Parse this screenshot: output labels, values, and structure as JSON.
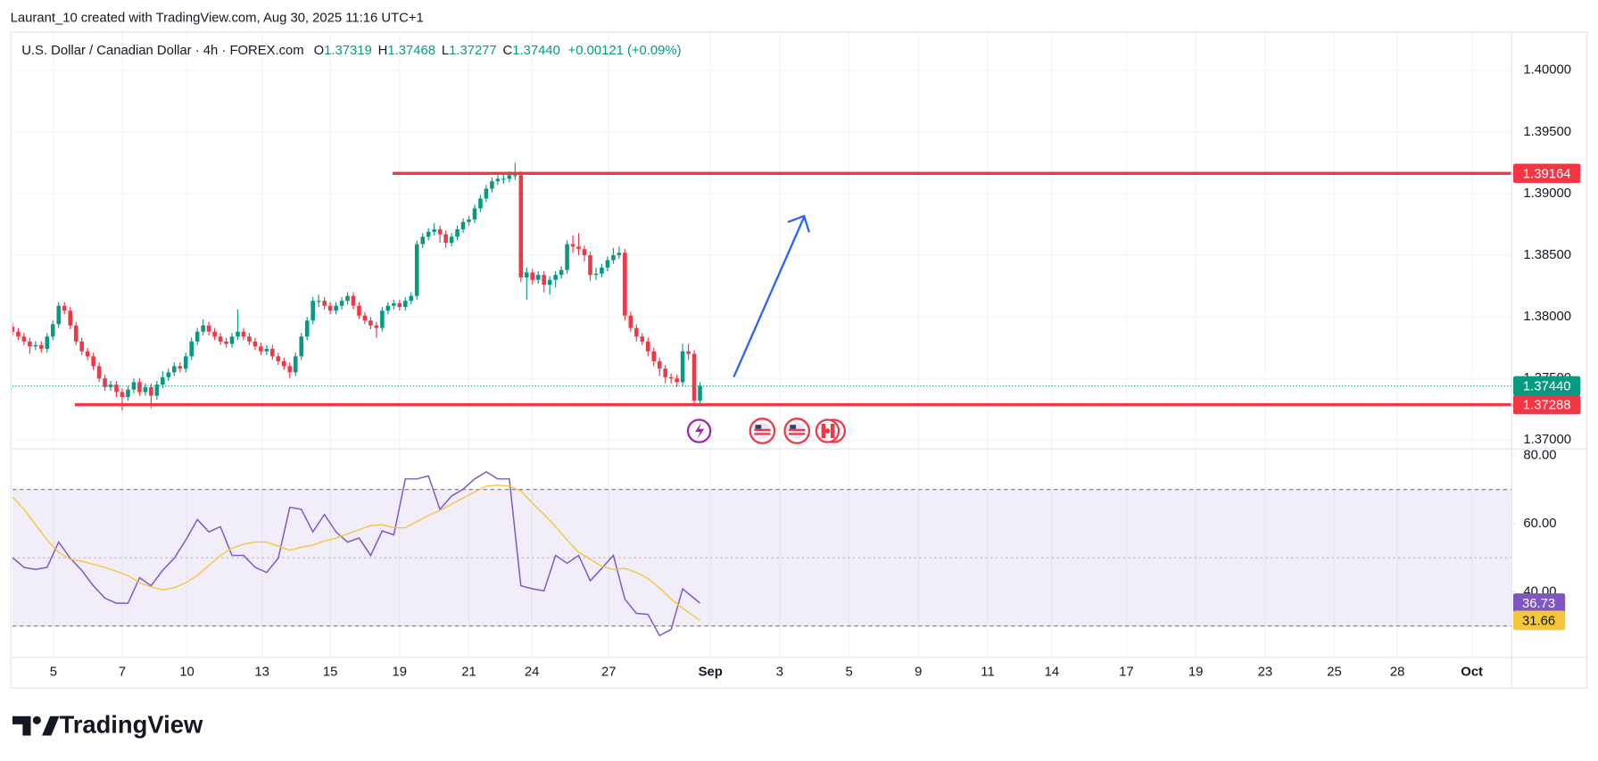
{
  "header": {
    "attribution": "Laurant_10 created with TradingView.com, Aug 30, 2025 11:16 UTC+1",
    "symbol": "U.S. Dollar / Canadian Dollar · 4h · FOREX.com",
    "ohlc": [
      {
        "key": "O",
        "value": "1.37319"
      },
      {
        "key": "H",
        "value": "1.37468"
      },
      {
        "key": "L",
        "value": "1.37277"
      },
      {
        "key": "C",
        "value": "1.37440"
      }
    ],
    "change": "+0.00121 (+0.09%)"
  },
  "chart_data": [
    {
      "type": "candlestick",
      "xlim": [
        0,
        259.4
      ],
      "xticks": [
        {
          "value": 7.1,
          "label": "5"
        },
        {
          "value": 19.0,
          "label": "7"
        },
        {
          "value": 30.2,
          "label": "10"
        },
        {
          "value": 43.2,
          "label": "13"
        },
        {
          "value": 55.0,
          "label": "15"
        },
        {
          "value": 67.0,
          "label": "19"
        },
        {
          "value": 79.0,
          "label": "21"
        },
        {
          "value": 89.9,
          "label": "24"
        },
        {
          "value": 103.2,
          "label": "27"
        },
        {
          "value": 120.8,
          "label": "Sep"
        },
        {
          "value": 132.8,
          "label": "3"
        },
        {
          "value": 144.8,
          "label": "5"
        },
        {
          "value": 156.8,
          "label": "9"
        },
        {
          "value": 168.8,
          "label": "11"
        },
        {
          "value": 179.9,
          "label": "14"
        },
        {
          "value": 192.8,
          "label": "17"
        },
        {
          "value": 204.8,
          "label": "19"
        },
        {
          "value": 216.8,
          "label": "23"
        },
        {
          "value": 228.8,
          "label": "25"
        },
        {
          "value": 239.7,
          "label": "28"
        },
        {
          "value": 252.6,
          "label": "Oct"
        }
      ],
      "ylim": [
        1.36934,
        1.40306
      ],
      "yticks": [
        {
          "value": 1.37,
          "label": "1.37000"
        },
        {
          "value": 1.375,
          "label": "1.37500"
        },
        {
          "value": 1.38,
          "label": "1.38000"
        },
        {
          "value": 1.385,
          "label": "1.38500"
        },
        {
          "value": 1.39,
          "label": "1.39000"
        },
        {
          "value": 1.395,
          "label": "1.39500"
        },
        {
          "value": 1.4,
          "label": "1.40000"
        }
      ],
      "grid": true,
      "up_color": "#089981",
      "down_color": "#f23645",
      "open": [
        1.3792,
        1.3788,
        1.3784,
        1.378,
        1.3776,
        1.3777,
        1.3774,
        1.3784,
        1.3794,
        1.3809,
        1.3805,
        1.3793,
        1.378,
        1.3772,
        1.3768,
        1.376,
        1.375,
        1.3743,
        1.3745,
        1.3739,
        1.3735,
        1.3741,
        1.3747,
        1.3739,
        1.3743,
        1.3736,
        1.3745,
        1.3751,
        1.3755,
        1.376,
        1.3758,
        1.3768,
        1.378,
        1.3788,
        1.3793,
        1.3788,
        1.3784,
        1.378,
        1.3778,
        1.3784,
        1.3788,
        1.3784,
        1.378,
        1.3776,
        1.3772,
        1.3774,
        1.3768,
        1.3764,
        1.376,
        1.3755,
        1.3768,
        1.3784,
        1.3797,
        1.3813,
        1.3813,
        1.3809,
        1.3805,
        1.3809,
        1.3813,
        1.3817,
        1.3809,
        1.3801,
        1.3797,
        1.3793,
        1.3791,
        1.3805,
        1.3809,
        1.3811,
        1.3808,
        1.3813,
        1.3817,
        1.3859,
        1.3865,
        1.3869,
        1.3871,
        1.3867,
        1.386,
        1.3865,
        1.3871,
        1.3877,
        1.3879,
        1.3888,
        1.3896,
        1.3904,
        1.391,
        1.3912,
        1.3912,
        1.3915,
        1.3915,
        1.3832,
        1.3836,
        1.383,
        1.3834,
        1.3826,
        1.383,
        1.3834,
        1.3838,
        1.3859,
        1.3857,
        1.3855,
        1.385,
        1.3834,
        1.3835,
        1.384,
        1.3846,
        1.385,
        1.3852,
        1.3801,
        1.3791,
        1.3784,
        1.378,
        1.3772,
        1.3764,
        1.3758,
        1.3751,
        1.375,
        1.3747,
        1.3772,
        1.377,
        1.3732
      ],
      "high": [
        1.3795,
        1.3791,
        1.3787,
        1.3783,
        1.378,
        1.378,
        1.3787,
        1.3797,
        1.3812,
        1.3812,
        1.3808,
        1.3796,
        1.3783,
        1.3775,
        1.3771,
        1.3763,
        1.3753,
        1.3748,
        1.3748,
        1.3742,
        1.3744,
        1.375,
        1.375,
        1.3746,
        1.3746,
        1.3748,
        1.3756,
        1.3758,
        1.3763,
        1.3763,
        1.3771,
        1.3783,
        1.3791,
        1.3798,
        1.3796,
        1.3791,
        1.3787,
        1.3783,
        1.3787,
        1.3806,
        1.3791,
        1.3787,
        1.3783,
        1.3779,
        1.3777,
        1.3777,
        1.3771,
        1.3767,
        1.3763,
        1.3771,
        1.3787,
        1.38,
        1.3816,
        1.3818,
        1.3816,
        1.3812,
        1.3812,
        1.3816,
        1.382,
        1.382,
        1.3812,
        1.3804,
        1.38,
        1.3796,
        1.3808,
        1.3812,
        1.3814,
        1.3814,
        1.3816,
        1.382,
        1.3862,
        1.3868,
        1.3872,
        1.3876,
        1.3874,
        1.387,
        1.3868,
        1.3874,
        1.388,
        1.3882,
        1.3891,
        1.3899,
        1.3907,
        1.3913,
        1.3915,
        1.3916,
        1.3918,
        1.3925,
        1.3918,
        1.384,
        1.3839,
        1.3837,
        1.3837,
        1.3833,
        1.3837,
        1.3841,
        1.3862,
        1.3866,
        1.3868,
        1.3858,
        1.3853,
        1.384,
        1.3843,
        1.3849,
        1.3856,
        1.3857,
        1.3855,
        1.3804,
        1.3794,
        1.3787,
        1.3783,
        1.3775,
        1.3767,
        1.3761,
        1.3754,
        1.3753,
        1.3778,
        1.3778,
        1.3773,
        1.3747
      ],
      "low": [
        1.3785,
        1.3781,
        1.3777,
        1.377,
        1.3773,
        1.3771,
        1.3771,
        1.3781,
        1.3791,
        1.3802,
        1.379,
        1.3777,
        1.3769,
        1.3765,
        1.3757,
        1.3747,
        1.374,
        1.374,
        1.3735,
        1.3724,
        1.3732,
        1.3738,
        1.3736,
        1.3736,
        1.3726,
        1.3733,
        1.3742,
        1.3748,
        1.3752,
        1.3755,
        1.3755,
        1.3765,
        1.3777,
        1.3785,
        1.3785,
        1.3781,
        1.3777,
        1.3775,
        1.3775,
        1.3781,
        1.3781,
        1.3777,
        1.3773,
        1.3769,
        1.3769,
        1.3765,
        1.3761,
        1.3757,
        1.375,
        1.3752,
        1.3765,
        1.3781,
        1.3794,
        1.3808,
        1.3806,
        1.3802,
        1.3802,
        1.3806,
        1.381,
        1.3806,
        1.3798,
        1.3794,
        1.379,
        1.3783,
        1.3788,
        1.3802,
        1.3806,
        1.3805,
        1.3805,
        1.381,
        1.3814,
        1.3856,
        1.3862,
        1.3866,
        1.386,
        1.3856,
        1.3857,
        1.3862,
        1.3868,
        1.3874,
        1.3876,
        1.3885,
        1.3893,
        1.3901,
        1.3907,
        1.3908,
        1.3909,
        1.3911,
        1.3828,
        1.3814,
        1.3826,
        1.3827,
        1.382,
        1.3818,
        1.3824,
        1.3831,
        1.3835,
        1.3852,
        1.385,
        1.3845,
        1.3829,
        1.383,
        1.3832,
        1.3837,
        1.3843,
        1.3847,
        1.3797,
        1.3788,
        1.378,
        1.3777,
        1.3768,
        1.376,
        1.3752,
        1.3746,
        1.3746,
        1.3743,
        1.3744,
        1.3765,
        1.3728,
        1.3728
      ],
      "close": [
        1.3788,
        1.3784,
        1.378,
        1.3776,
        1.3777,
        1.3774,
        1.3784,
        1.3794,
        1.3809,
        1.3805,
        1.3793,
        1.378,
        1.3772,
        1.3768,
        1.376,
        1.375,
        1.3743,
        1.3745,
        1.3739,
        1.3735,
        1.3741,
        1.3747,
        1.3739,
        1.3743,
        1.3736,
        1.3745,
        1.3751,
        1.3755,
        1.376,
        1.3758,
        1.3768,
        1.378,
        1.3788,
        1.3793,
        1.3788,
        1.3784,
        1.378,
        1.3778,
        1.3784,
        1.3788,
        1.3784,
        1.378,
        1.3776,
        1.3772,
        1.3774,
        1.3768,
        1.3764,
        1.376,
        1.3755,
        1.3768,
        1.3784,
        1.3797,
        1.3813,
        1.3813,
        1.3809,
        1.3805,
        1.3809,
        1.3813,
        1.3817,
        1.3809,
        1.3801,
        1.3797,
        1.3793,
        1.3791,
        1.3805,
        1.3809,
        1.3811,
        1.3808,
        1.3813,
        1.3817,
        1.3859,
        1.3865,
        1.3869,
        1.3871,
        1.3867,
        1.386,
        1.3865,
        1.3871,
        1.3877,
        1.3879,
        1.3888,
        1.3896,
        1.3904,
        1.391,
        1.3912,
        1.3912,
        1.3915,
        1.3915,
        1.3832,
        1.3836,
        1.383,
        1.3834,
        1.3826,
        1.383,
        1.3834,
        1.3838,
        1.3859,
        1.3857,
        1.3855,
        1.385,
        1.3834,
        1.3835,
        1.384,
        1.3846,
        1.385,
        1.3852,
        1.3801,
        1.3791,
        1.3784,
        1.378,
        1.3772,
        1.3764,
        1.3758,
        1.3751,
        1.375,
        1.3747,
        1.3772,
        1.377,
        1.3732,
        1.3744
      ],
      "levels": [
        {
          "value": 1.39164,
          "label": "1.39164",
          "x_start": 65.8,
          "color": "#f23645"
        },
        {
          "value": 1.37288,
          "label": "1.37288",
          "x_start": 10.8,
          "color": "#f23645"
        }
      ],
      "last_price": {
        "value": 1.3744,
        "label": "1.37440",
        "color": "#089981"
      }
    },
    {
      "type": "line",
      "xlim": [
        0,
        259.4
      ],
      "ylim": [
        20.9,
        82.1
      ],
      "yticks": [
        {
          "value": 40,
          "label": "40.00"
        },
        {
          "value": 60,
          "label": "60.00"
        },
        {
          "value": 80,
          "label": "80.00"
        }
      ],
      "bands": [
        70,
        50,
        30
      ],
      "band_color": "#7e57c2",
      "x": [
        0,
        2,
        4,
        6,
        8,
        10,
        12,
        14,
        16,
        18,
        20,
        22,
        24,
        26,
        28,
        30,
        32,
        34,
        36,
        38,
        40,
        42,
        44,
        46,
        48,
        50,
        52,
        54,
        56,
        58,
        60,
        62,
        64,
        66,
        68,
        70,
        72,
        74,
        76,
        78,
        80,
        82,
        84,
        86,
        88,
        90,
        92,
        94,
        96,
        98,
        100,
        102,
        104,
        106,
        108,
        110,
        112,
        114,
        116,
        119
      ],
      "series": [
        {
          "color": "#7e57c2",
          "values": [
            50.1,
            47.2,
            46.6,
            47.2,
            54.6,
            49.9,
            46.3,
            41.8,
            38.2,
            36.7,
            36.7,
            44.2,
            41.8,
            46.3,
            49.9,
            55.2,
            61.2,
            57.6,
            59.1,
            50.7,
            50.7,
            47.2,
            45.7,
            49.9,
            64.8,
            64.2,
            57.6,
            62.7,
            57.6,
            54.6,
            55.8,
            50.7,
            57.9,
            56.7,
            73.1,
            73.1,
            74.0,
            64.2,
            68.1,
            70.1,
            73.1,
            75.2,
            73.1,
            73.1,
            41.8,
            40.9,
            40.3,
            50.7,
            48.4,
            50.7,
            43.3,
            46.9,
            50.7,
            37.9,
            33.7,
            33.4,
            27.2,
            29.0,
            40.9,
            36.73
          ]
        },
        {
          "color": "#f5c53a",
          "values": [
            67.8,
            64.2,
            59.7,
            55.2,
            51.6,
            49.6,
            49.0,
            48.1,
            47.2,
            46.0,
            44.8,
            42.7,
            41.5,
            40.6,
            41.2,
            42.7,
            44.8,
            47.8,
            50.7,
            52.8,
            54.0,
            54.6,
            54.6,
            53.4,
            52.2,
            53.1,
            53.7,
            54.9,
            55.8,
            57.0,
            58.2,
            59.4,
            59.7,
            58.8,
            58.8,
            60.6,
            62.4,
            63.9,
            65.7,
            67.5,
            69.3,
            71.0,
            71.3,
            71.0,
            69.6,
            66.0,
            62.7,
            59.1,
            55.2,
            51.6,
            49.6,
            47.5,
            46.6,
            46.9,
            45.7,
            43.9,
            41.2,
            37.9,
            35.2,
            31.66
          ]
        }
      ]
    }
  ],
  "logo": "TradingView"
}
